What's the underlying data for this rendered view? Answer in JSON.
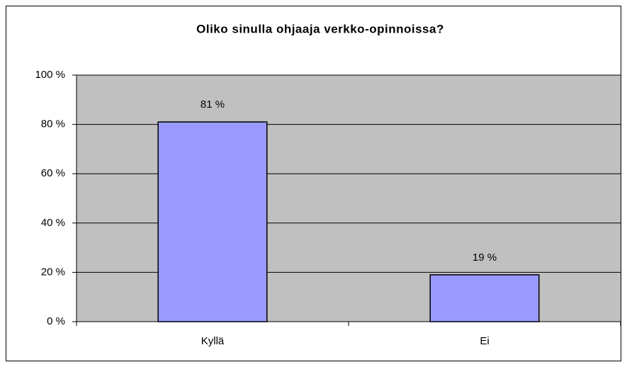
{
  "chart_data": {
    "type": "bar",
    "title": "Oliko sinulla ohjaaja verkko-opinnoissa?",
    "categories": [
      "Kyllä",
      "Ei"
    ],
    "values": [
      81,
      19
    ],
    "value_labels": [
      "81 %",
      "19 %"
    ],
    "color": "#9999ff",
    "ylim": [
      0,
      100
    ],
    "yticks": [
      {
        "value": 0,
        "label": "0 %"
      },
      {
        "value": 20,
        "label": "20 %"
      },
      {
        "value": 40,
        "label": "40 %"
      },
      {
        "value": 60,
        "label": "60 %"
      },
      {
        "value": 80,
        "label": "80 %"
      },
      {
        "value": 100,
        "label": "100 %"
      }
    ],
    "grid": true
  }
}
